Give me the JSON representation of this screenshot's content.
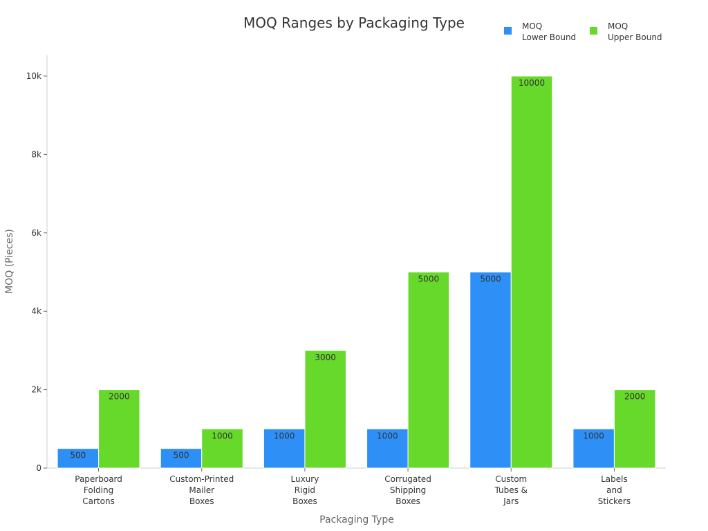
{
  "chart_data": {
    "type": "bar",
    "title": "MOQ Ranges by Packaging Type",
    "xlabel": "Packaging Type",
    "ylabel": "MOQ (Pieces)",
    "categories": [
      [
        "Paperboard",
        "Folding",
        "Cartons"
      ],
      [
        "Custom-Printed",
        "Mailer",
        "Boxes"
      ],
      [
        "Luxury",
        "Rigid",
        "Boxes"
      ],
      [
        "Corrugated",
        "Shipping",
        "Boxes"
      ],
      [
        "Custom",
        "Tubes &",
        "Jars"
      ],
      [
        "Labels",
        "and",
        "Stickers"
      ]
    ],
    "series": [
      {
        "name": [
          "MOQ",
          "Lower Bound"
        ],
        "color": "#2e8ff6",
        "values": [
          500,
          500,
          1000,
          1000,
          5000,
          1000
        ]
      },
      {
        "name": [
          "MOQ",
          "Upper Bound"
        ],
        "color": "#66d92b",
        "values": [
          2000,
          1000,
          3000,
          5000,
          10000,
          2000
        ]
      }
    ],
    "ylim": [
      0,
      10500
    ],
    "yticks": [
      0,
      2000,
      4000,
      6000,
      8000,
      10000
    ],
    "ytick_labels": [
      "0",
      "2k",
      "4k",
      "6k",
      "8k",
      "10k"
    ],
    "legend_position": "top-right",
    "grid": false
  }
}
